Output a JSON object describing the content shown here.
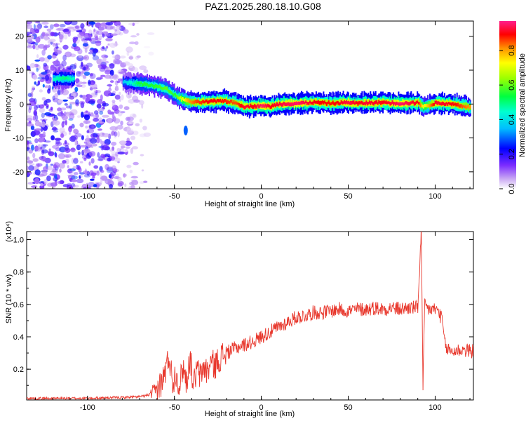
{
  "figure_title": "PAZ1.2025.280.18.10.G08",
  "chart_data": [
    {
      "type": "heatmap",
      "title": "",
      "xlabel": "Height of straight line (km)",
      "ylabel": "Frequency (Hz)",
      "xlim": [
        -135,
        122
      ],
      "ylim": [
        -25,
        24.5
      ],
      "xticks": [
        -100,
        -50,
        0,
        50,
        100
      ],
      "yticks": [
        -20,
        -10,
        0,
        10,
        20
      ],
      "colorbar": {
        "label": "Normalized spectral amplitude",
        "range": [
          0,
          0.97
        ],
        "ticks": [
          0,
          0.2,
          0.4,
          0.6,
          0.8
        ],
        "colormap": "rainbow (violet-blue-cyan-green-yellow-red-magenta)"
      },
      "ridge": {
        "x": [
          -120,
          -113,
          -105,
          -95,
          -85,
          -77,
          -70,
          -63,
          -55,
          -50,
          -46,
          -42,
          -38,
          -30,
          -22,
          -15,
          -10,
          -5,
          0,
          5,
          10,
          20,
          30,
          40,
          50,
          55,
          60,
          70,
          80,
          90,
          93,
          100,
          110,
          120
        ],
        "y": [
          7.5,
          7.5,
          7.5,
          7.2,
          6.8,
          6.3,
          6.0,
          5.5,
          4.5,
          2.5,
          1.5,
          0.8,
          0.5,
          0.7,
          1.0,
          0.3,
          -0.8,
          -0.6,
          -0.5,
          -0.7,
          0.0,
          0.2,
          0.5,
          0.2,
          0.5,
          0.2,
          0.3,
          0.5,
          0.2,
          0.4,
          -0.8,
          0.3,
          0.0,
          -1.0
        ],
        "amplitude": [
          0.45,
          0.5,
          0.4,
          0.35,
          0.3,
          0.4,
          0.55,
          0.55,
          0.6,
          0.55,
          0.7,
          0.8,
          0.85,
          0.9,
          0.88,
          0.85,
          0.92,
          0.9,
          0.95,
          0.9,
          0.92,
          0.95,
          0.9,
          0.88,
          0.93,
          0.9,
          0.92,
          0.9,
          0.95,
          0.9,
          0.7,
          0.92,
          0.9,
          0.8
        ]
      },
      "noise_region": {
        "x": [
          -135,
          -62
        ],
        "amplitude": [
          0.05,
          0.25
        ]
      }
    },
    {
      "type": "line",
      "title": "",
      "xlabel": "Height of straight line (km)",
      "ylabel": "SNR (10 * v/v)",
      "scale_note": "(x10⁴)",
      "xlim": [
        -135,
        122
      ],
      "ylim": [
        0.01,
        1.05
      ],
      "xticks": [
        -100,
        -50,
        0,
        50,
        100
      ],
      "yticks": [
        0.2,
        0.4,
        0.6,
        0.8,
        1.0
      ],
      "ytick_labels": [
        "0.2",
        "0.4",
        "0.6",
        "0.8",
        "1.0"
      ],
      "color": "#e8382d",
      "series": [
        {
          "x": [
            -135,
            -120,
            -100,
            -80,
            -70,
            -65,
            -62,
            -60,
            -57,
            -55,
            -53,
            -51,
            -49,
            -47,
            -45,
            -43,
            -41,
            -39,
            -37,
            -35,
            -33,
            -31,
            -29,
            -27,
            -25,
            -23,
            -20,
            -15,
            -10,
            -5,
            0,
            5,
            10,
            15,
            20,
            25,
            30,
            35,
            40,
            45,
            50,
            55,
            60,
            65,
            70,
            75,
            80,
            85,
            90,
            92,
            93,
            94,
            96,
            100,
            102,
            104,
            106,
            110,
            115,
            122
          ],
          "y": [
            0.02,
            0.02,
            0.02,
            0.025,
            0.03,
            0.04,
            0.06,
            0.08,
            0.12,
            0.2,
            0.28,
            0.12,
            0.18,
            0.1,
            0.22,
            0.12,
            0.28,
            0.1,
            0.2,
            0.15,
            0.22,
            0.18,
            0.25,
            0.22,
            0.25,
            0.28,
            0.3,
            0.33,
            0.35,
            0.37,
            0.4,
            0.43,
            0.46,
            0.49,
            0.52,
            0.53,
            0.55,
            0.55,
            0.56,
            0.57,
            0.56,
            0.57,
            0.57,
            0.58,
            0.57,
            0.58,
            0.57,
            0.58,
            0.58,
            1.05,
            0.08,
            0.6,
            0.57,
            0.57,
            0.56,
            0.5,
            0.33,
            0.31,
            0.32,
            0.31
          ]
        }
      ]
    }
  ]
}
